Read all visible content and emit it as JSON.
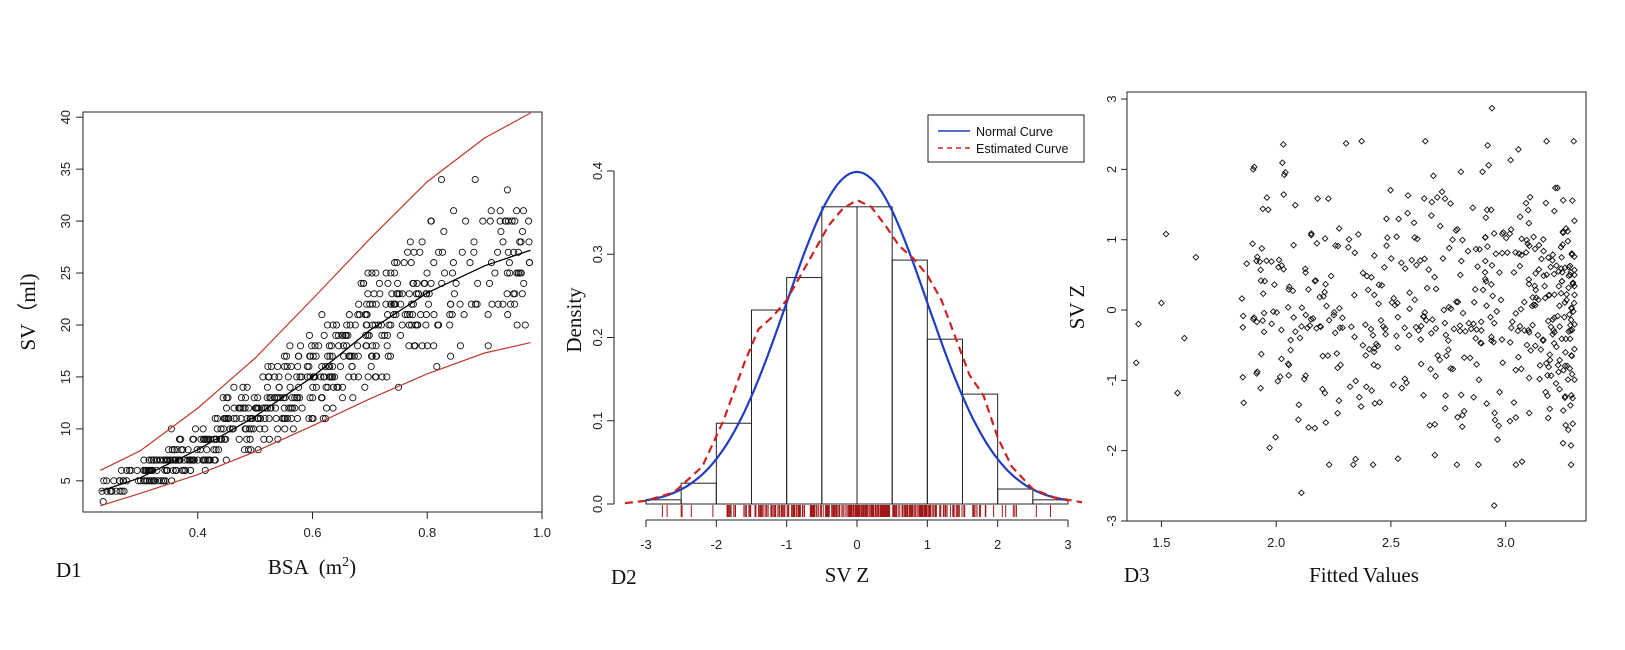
{
  "chart_data": [
    {
      "panel": "D1",
      "type": "scatter",
      "xlabel": "BSA",
      "xlabel_unit_base": "(m",
      "xlabel_unit_exp": "2",
      "xlabel_unit_close": ")",
      "ylabel": "SV（ml)",
      "xlim": [
        0.2,
        1.0
      ],
      "ylim": [
        2,
        40.5
      ],
      "xticks": [
        0.4,
        0.6,
        0.8,
        1.0
      ],
      "xtick_labels": [
        "0.4",
        "0.6",
        "0.8",
        "1.0"
      ],
      "yticks": [
        5,
        10,
        15,
        20,
        25,
        30,
        35,
        40
      ],
      "ytick_labels": [
        "5",
        "10",
        "15",
        "20",
        "25",
        "30",
        "35",
        "40"
      ],
      "point_color": "#111111",
      "curve_colors": {
        "median": "#000000",
        "bounds": "#c0392b"
      },
      "n_points": 600,
      "lines": {
        "median": [
          [
            0.23,
            4.0
          ],
          [
            0.3,
            5.3
          ],
          [
            0.4,
            8.0
          ],
          [
            0.5,
            11.2
          ],
          [
            0.6,
            15.0
          ],
          [
            0.7,
            19.5
          ],
          [
            0.8,
            23.1
          ],
          [
            0.9,
            25.7
          ],
          [
            0.98,
            27.2
          ]
        ],
        "upper": [
          [
            0.23,
            6.0
          ],
          [
            0.3,
            7.9
          ],
          [
            0.4,
            12.0
          ],
          [
            0.5,
            16.8
          ],
          [
            0.6,
            22.5
          ],
          [
            0.7,
            28.3
          ],
          [
            0.8,
            33.8
          ],
          [
            0.9,
            38.0
          ],
          [
            0.98,
            40.4
          ]
        ],
        "lower": [
          [
            0.23,
            2.6
          ],
          [
            0.3,
            3.8
          ],
          [
            0.4,
            5.6
          ],
          [
            0.5,
            7.8
          ],
          [
            0.6,
            10.3
          ],
          [
            0.7,
            12.9
          ],
          [
            0.8,
            15.3
          ],
          [
            0.9,
            17.3
          ],
          [
            0.98,
            18.3
          ]
        ]
      }
    },
    {
      "panel": "D2",
      "type": "histogram",
      "xlabel": "SV Z",
      "ylabel": "Density",
      "xlim": [
        -3.3,
        3.2
      ],
      "ylim": [
        0,
        0.42
      ],
      "xticks": [
        -3,
        -2,
        -1,
        0,
        1,
        2,
        3
      ],
      "xtick_labels": [
        "-3",
        "-2",
        "-1",
        "0",
        "1",
        "2",
        "3"
      ],
      "yticks": [
        0.0,
        0.1,
        0.2,
        0.3,
        0.4
      ],
      "ytick_labels": [
        "0.0",
        "0.1",
        "0.2",
        "0.3",
        "0.4"
      ],
      "bins": [
        {
          "x0": -3.0,
          "x1": -2.5,
          "density": 0.005
        },
        {
          "x0": -2.5,
          "x1": -2.0,
          "density": 0.025
        },
        {
          "x0": -2.0,
          "x1": -1.5,
          "density": 0.097
        },
        {
          "x0": -1.5,
          "x1": -1.0,
          "density": 0.233
        },
        {
          "x0": -1.0,
          "x1": -0.5,
          "density": 0.272
        },
        {
          "x0": -0.5,
          "x1": 0.0,
          "density": 0.357
        },
        {
          "x0": 0.0,
          "x1": 0.5,
          "density": 0.357
        },
        {
          "x0": 0.5,
          "x1": 1.0,
          "density": 0.293
        },
        {
          "x0": 1.0,
          "x1": 1.5,
          "density": 0.198
        },
        {
          "x0": 1.5,
          "x1": 2.0,
          "density": 0.132
        },
        {
          "x0": 2.0,
          "x1": 2.5,
          "density": 0.018
        },
        {
          "x0": 2.5,
          "x1": 3.0,
          "density": 0.005
        }
      ],
      "series": [
        {
          "name": "Normal Curve",
          "color": "#1f3fbf",
          "style": "solid"
        },
        {
          "name": "Estimated Curve",
          "color": "#cc2222",
          "style": "dashed",
          "points": [
            [
              -3.3,
              0.001
            ],
            [
              -3.0,
              0.004
            ],
            [
              -2.6,
              0.014
            ],
            [
              -2.2,
              0.045
            ],
            [
              -1.9,
              0.1
            ],
            [
              -1.6,
              0.17
            ],
            [
              -1.4,
              0.21
            ],
            [
              -1.2,
              0.225
            ],
            [
              -1.0,
              0.245
            ],
            [
              -0.7,
              0.29
            ],
            [
              -0.4,
              0.335
            ],
            [
              -0.2,
              0.355
            ],
            [
              0.0,
              0.365
            ],
            [
              0.2,
              0.357
            ],
            [
              0.4,
              0.335
            ],
            [
              0.6,
              0.31
            ],
            [
              0.8,
              0.295
            ],
            [
              1.0,
              0.275
            ],
            [
              1.2,
              0.245
            ],
            [
              1.4,
              0.2
            ],
            [
              1.6,
              0.155
            ],
            [
              1.8,
              0.13
            ],
            [
              2.0,
              0.08
            ],
            [
              2.2,
              0.045
            ],
            [
              2.5,
              0.018
            ],
            [
              2.8,
              0.008
            ],
            [
              3.2,
              0.002
            ]
          ]
        }
      ],
      "rug_color": "#a01818",
      "legend_position": "top-right"
    },
    {
      "panel": "D3",
      "type": "scatter",
      "xlabel": "Fitted Values",
      "ylabel": "SV Z",
      "xlim": [
        1.35,
        3.35
      ],
      "ylim": [
        -3.0,
        3.1
      ],
      "xticks": [
        1.5,
        2.0,
        2.5,
        3.0
      ],
      "xtick_labels": [
        "1.5",
        "2.0",
        "2.5",
        "3.0"
      ],
      "yticks": [
        -3,
        -2,
        -1,
        0,
        1,
        2,
        3
      ],
      "ytick_labels": [
        "-3",
        "-2",
        "-1",
        "0",
        "1",
        "2",
        "3"
      ],
      "point_color": "#111111",
      "n_points": 520,
      "extra_points": [
        [
          1.4,
          -0.2
        ],
        [
          1.39,
          -0.75
        ],
        [
          1.5,
          0.1
        ],
        [
          1.52,
          1.08
        ],
        [
          1.57,
          -1.18
        ],
        [
          1.6,
          -0.4
        ],
        [
          1.65,
          0.75
        ],
        [
          2.94,
          2.87
        ],
        [
          2.95,
          -2.78
        ],
        [
          2.11,
          -2.6
        ],
        [
          1.9,
          2.0
        ]
      ]
    }
  ],
  "panel_tags": [
    "D1",
    "D2",
    "D3"
  ]
}
